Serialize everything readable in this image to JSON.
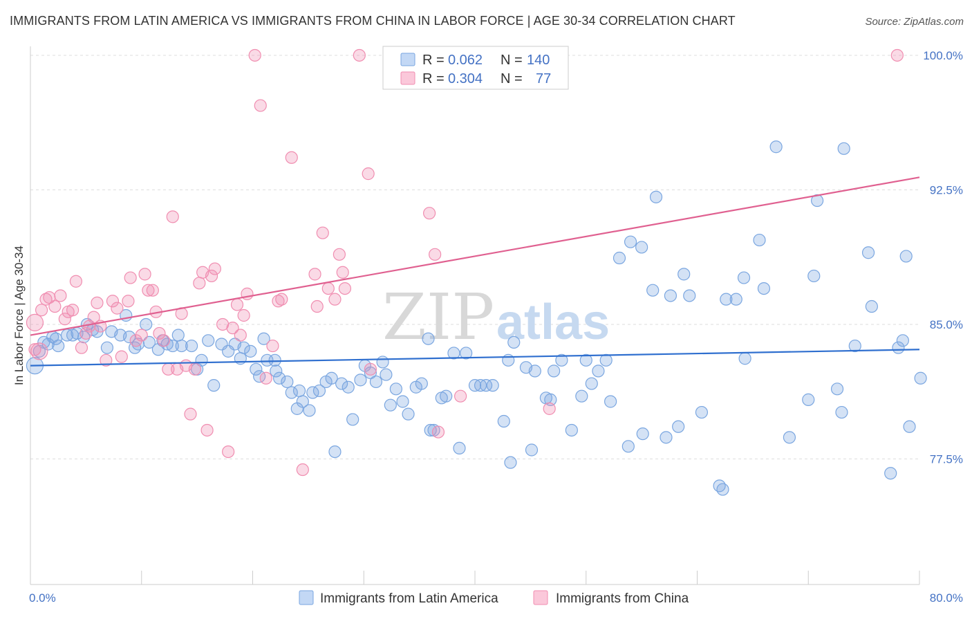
{
  "header": {
    "title": "IMMIGRANTS FROM LATIN AMERICA VS IMMIGRANTS FROM CHINA IN LABOR FORCE | AGE 30-34 CORRELATION CHART",
    "source": "Source: ZipAtlas.com"
  },
  "legend": {
    "r_label": "R =",
    "n_label": "N =",
    "rows": [
      {
        "r": "0.062",
        "n": "140",
        "color": "#7aa6e0"
      },
      {
        "r": "0.304",
        "n": "77",
        "color": "#f08db0"
      }
    ]
  },
  "watermark": {
    "zip": "ZIP",
    "atlas": "atlas"
  },
  "chart_data": {
    "type": "scatter",
    "title": "IMMIGRANTS FROM LATIN AMERICA VS IMMIGRANTS FROM CHINA IN LABOR FORCE | AGE 30-34 CORRELATION CHART",
    "xlabel": "",
    "ylabel": "In Labor Force | Age 30-34",
    "xlim": [
      0,
      80
    ],
    "ylim": [
      70.5,
      100.5
    ],
    "x_tick_labels": [
      "0.0%",
      "80.0%"
    ],
    "y_ticks": [
      77.5,
      85.0,
      92.5,
      100.0
    ],
    "y_tick_labels": [
      "77.5%",
      "85.0%",
      "92.5%",
      "100.0%"
    ],
    "grid": true,
    "legend_position": "top-center",
    "series": [
      {
        "name": "Immigrants from Latin America",
        "color": "#7aa6e0",
        "line_color": "#2f6fcf",
        "r": 0.062,
        "n": 140,
        "trend": {
          "x0": 0,
          "y0": 82.7,
          "x1": 80,
          "y1": 83.6
        },
        "points": [
          [
            0.4,
            82.7
          ],
          [
            0.8,
            83.5
          ],
          [
            1.2,
            84.0
          ],
          [
            1.6,
            83.9
          ],
          [
            2.0,
            84.3
          ],
          [
            2.3,
            84.2
          ],
          [
            2.5,
            83.8
          ],
          [
            3.3,
            84.4
          ],
          [
            3.8,
            84.4
          ],
          [
            4.2,
            84.5
          ],
          [
            4.8,
            84.3
          ],
          [
            5.1,
            85.0
          ],
          [
            5.6,
            84.7
          ],
          [
            6.0,
            84.6
          ],
          [
            6.9,
            83.7
          ],
          [
            7.3,
            84.6
          ],
          [
            8.1,
            84.4
          ],
          [
            8.6,
            85.5
          ],
          [
            8.9,
            84.3
          ],
          [
            9.4,
            83.7
          ],
          [
            9.7,
            83.9
          ],
          [
            10.4,
            85.0
          ],
          [
            10.7,
            84.0
          ],
          [
            11.5,
            83.6
          ],
          [
            11.9,
            84.1
          ],
          [
            12.3,
            83.9
          ],
          [
            12.8,
            83.8
          ],
          [
            13.3,
            84.4
          ],
          [
            13.6,
            83.8
          ],
          [
            14.5,
            83.8
          ],
          [
            15.0,
            82.5
          ],
          [
            15.4,
            83.0
          ],
          [
            16.0,
            84.1
          ],
          [
            16.5,
            81.6
          ],
          [
            17.2,
            83.9
          ],
          [
            17.8,
            83.5
          ],
          [
            18.4,
            83.9
          ],
          [
            18.9,
            83.1
          ],
          [
            19.2,
            83.7
          ],
          [
            19.8,
            83.5
          ],
          [
            20.3,
            82.5
          ],
          [
            20.6,
            82.1
          ],
          [
            21.0,
            84.2
          ],
          [
            21.3,
            83.0
          ],
          [
            22.0,
            83.0
          ],
          [
            22.1,
            82.4
          ],
          [
            22.4,
            82.0
          ],
          [
            23.1,
            81.8
          ],
          [
            23.5,
            81.2
          ],
          [
            24.0,
            80.3
          ],
          [
            24.2,
            81.3
          ],
          [
            24.5,
            80.7
          ],
          [
            25.1,
            80.2
          ],
          [
            25.4,
            81.2
          ],
          [
            26.0,
            81.3
          ],
          [
            26.6,
            81.8
          ],
          [
            27.1,
            82.0
          ],
          [
            27.4,
            77.9
          ],
          [
            28.0,
            81.7
          ],
          [
            28.6,
            81.5
          ],
          [
            29.0,
            79.7
          ],
          [
            29.7,
            81.9
          ],
          [
            30.1,
            82.7
          ],
          [
            30.6,
            82.3
          ],
          [
            31.1,
            81.8
          ],
          [
            31.7,
            82.9
          ],
          [
            32.0,
            82.2
          ],
          [
            32.4,
            80.5
          ],
          [
            32.9,
            81.4
          ],
          [
            33.5,
            80.7
          ],
          [
            34.0,
            80.0
          ],
          [
            34.7,
            81.5
          ],
          [
            35.2,
            81.7
          ],
          [
            35.8,
            84.2
          ],
          [
            36.0,
            79.1
          ],
          [
            36.3,
            79.1
          ],
          [
            37.0,
            80.9
          ],
          [
            37.4,
            81.0
          ],
          [
            38.1,
            83.4
          ],
          [
            38.6,
            78.1
          ],
          [
            39.2,
            83.4
          ],
          [
            40.0,
            81.6
          ],
          [
            40.5,
            81.6
          ],
          [
            41.0,
            81.6
          ],
          [
            41.6,
            81.6
          ],
          [
            42.6,
            79.6
          ],
          [
            43.0,
            83.0
          ],
          [
            43.2,
            77.3
          ],
          [
            43.5,
            84.0
          ],
          [
            44.6,
            82.6
          ],
          [
            45.1,
            78.0
          ],
          [
            45.4,
            82.4
          ],
          [
            46.4,
            80.9
          ],
          [
            46.8,
            80.8
          ],
          [
            47.1,
            82.4
          ],
          [
            47.8,
            83.0
          ],
          [
            48.7,
            79.1
          ],
          [
            49.6,
            81.0
          ],
          [
            50.0,
            83.0
          ],
          [
            50.5,
            81.7
          ],
          [
            51.1,
            82.4
          ],
          [
            51.8,
            83.0
          ],
          [
            52.2,
            80.7
          ],
          [
            53.0,
            88.7
          ],
          [
            53.8,
            78.2
          ],
          [
            54.0,
            89.6
          ],
          [
            55.0,
            89.3
          ],
          [
            55.1,
            78.9
          ],
          [
            56.0,
            86.9
          ],
          [
            56.3,
            92.1
          ],
          [
            57.2,
            78.7
          ],
          [
            57.6,
            86.6
          ],
          [
            58.3,
            79.3
          ],
          [
            58.8,
            87.8
          ],
          [
            59.3,
            86.6
          ],
          [
            60.4,
            80.1
          ],
          [
            62.0,
            76.0
          ],
          [
            62.3,
            75.8
          ],
          [
            62.6,
            86.4
          ],
          [
            63.5,
            86.4
          ],
          [
            64.2,
            87.6
          ],
          [
            64.3,
            83.1
          ],
          [
            65.6,
            89.7
          ],
          [
            66.0,
            87.0
          ],
          [
            67.1,
            94.9
          ],
          [
            68.3,
            78.7
          ],
          [
            70.0,
            80.8
          ],
          [
            70.5,
            87.7
          ],
          [
            70.8,
            91.9
          ],
          [
            72.6,
            81.4
          ],
          [
            73.0,
            80.1
          ],
          [
            73.2,
            94.8
          ],
          [
            74.2,
            83.8
          ],
          [
            75.4,
            89.0
          ],
          [
            75.7,
            86.0
          ],
          [
            77.4,
            76.7
          ],
          [
            78.1,
            83.7
          ],
          [
            78.5,
            84.1
          ],
          [
            78.8,
            88.8
          ],
          [
            79.1,
            79.3
          ],
          [
            80.1,
            82.0
          ]
        ]
      },
      {
        "name": "Immigrants from China",
        "color": "#f08db0",
        "line_color": "#e06090",
        "r": 0.304,
        "n": 77,
        "trend": {
          "x0": 0,
          "y0": 84.4,
          "x1": 80,
          "y1": 93.2
        },
        "points": [
          [
            0.4,
            85.1
          ],
          [
            0.8,
            83.5
          ],
          [
            1.0,
            85.8
          ],
          [
            1.4,
            86.4
          ],
          [
            1.7,
            86.5
          ],
          [
            2.2,
            86.0
          ],
          [
            2.7,
            86.6
          ],
          [
            3.1,
            85.3
          ],
          [
            3.4,
            85.7
          ],
          [
            3.8,
            85.8
          ],
          [
            4.1,
            87.4
          ],
          [
            4.6,
            83.7
          ],
          [
            5.0,
            84.5
          ],
          [
            5.3,
            84.9
          ],
          [
            5.7,
            85.4
          ],
          [
            6.0,
            86.2
          ],
          [
            6.3,
            84.9
          ],
          [
            6.8,
            83.0
          ],
          [
            7.4,
            86.3
          ],
          [
            7.8,
            85.9
          ],
          [
            8.2,
            83.2
          ],
          [
            8.8,
            86.3
          ],
          [
            9.0,
            87.6
          ],
          [
            9.5,
            84.1
          ],
          [
            10.0,
            84.4
          ],
          [
            10.3,
            87.8
          ],
          [
            10.6,
            86.9
          ],
          [
            11.0,
            86.9
          ],
          [
            11.3,
            85.7
          ],
          [
            11.6,
            84.5
          ],
          [
            12.0,
            84.1
          ],
          [
            12.4,
            82.5
          ],
          [
            12.8,
            91.0
          ],
          [
            13.2,
            82.5
          ],
          [
            13.6,
            85.6
          ],
          [
            14.0,
            82.7
          ],
          [
            14.4,
            80.0
          ],
          [
            14.8,
            82.5
          ],
          [
            15.2,
            87.3
          ],
          [
            15.5,
            87.9
          ],
          [
            15.9,
            79.1
          ],
          [
            16.3,
            87.7
          ],
          [
            16.6,
            88.1
          ],
          [
            17.3,
            85.0
          ],
          [
            17.8,
            77.9
          ],
          [
            18.2,
            84.8
          ],
          [
            18.6,
            86.1
          ],
          [
            18.9,
            84.4
          ],
          [
            19.2,
            85.5
          ],
          [
            19.5,
            86.7
          ],
          [
            20.2,
            100.0
          ],
          [
            20.7,
            97.2
          ],
          [
            21.2,
            82.0
          ],
          [
            21.8,
            83.8
          ],
          [
            22.3,
            86.3
          ],
          [
            22.6,
            86.4
          ],
          [
            23.5,
            94.3
          ],
          [
            24.5,
            76.9
          ],
          [
            25.6,
            87.8
          ],
          [
            25.8,
            86.0
          ],
          [
            26.3,
            90.1
          ],
          [
            26.8,
            87.0
          ],
          [
            27.4,
            86.4
          ],
          [
            27.8,
            88.9
          ],
          [
            28.1,
            87.9
          ],
          [
            28.3,
            87.0
          ],
          [
            29.6,
            100.0
          ],
          [
            30.4,
            93.4
          ],
          [
            30.6,
            82.5
          ],
          [
            33.0,
            100.0
          ],
          [
            35.9,
            91.2
          ],
          [
            36.4,
            88.9
          ],
          [
            36.7,
            79.0
          ],
          [
            38.7,
            81.0
          ],
          [
            46.7,
            80.3
          ],
          [
            78.0,
            100.0
          ],
          [
            0.4,
            83.6
          ]
        ]
      }
    ]
  },
  "bottom_legend": [
    {
      "label": "Immigrants from Latin America",
      "color": "#7aa6e0"
    },
    {
      "label": "Immigrants from China",
      "color": "#f08db0"
    }
  ]
}
